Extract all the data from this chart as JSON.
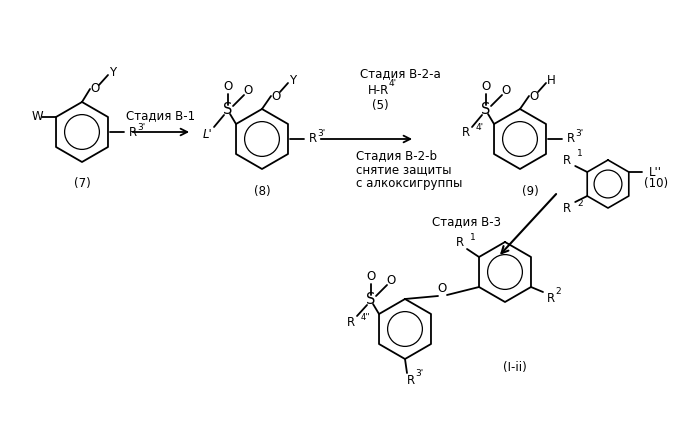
{
  "bg_color": "#ffffff",
  "fig_width": 7.0,
  "fig_height": 4.32,
  "dpi": 100,
  "font_size": 8.5,
  "font_size_small": 6.5,
  "structures": {
    "comp7_label": "(7)",
    "comp8_label": "(8)",
    "comp9_label": "(9)",
    "comp10_label": "(10)",
    "compIii_label": "(I-ii)"
  },
  "text_labels": {
    "stage_b1": "Стадия В-1",
    "stage_b2a": "Стадия В-2-а",
    "stage_b2b": "Стадия В-2-b",
    "stage_b3": "Стадия В-3",
    "hr4_pre": "H-R",
    "hr4_sup": "4'",
    "reagent5": "(5)",
    "deprotect": "снятие защиты",
    "deprotect2": "с алкоксигруппы"
  }
}
